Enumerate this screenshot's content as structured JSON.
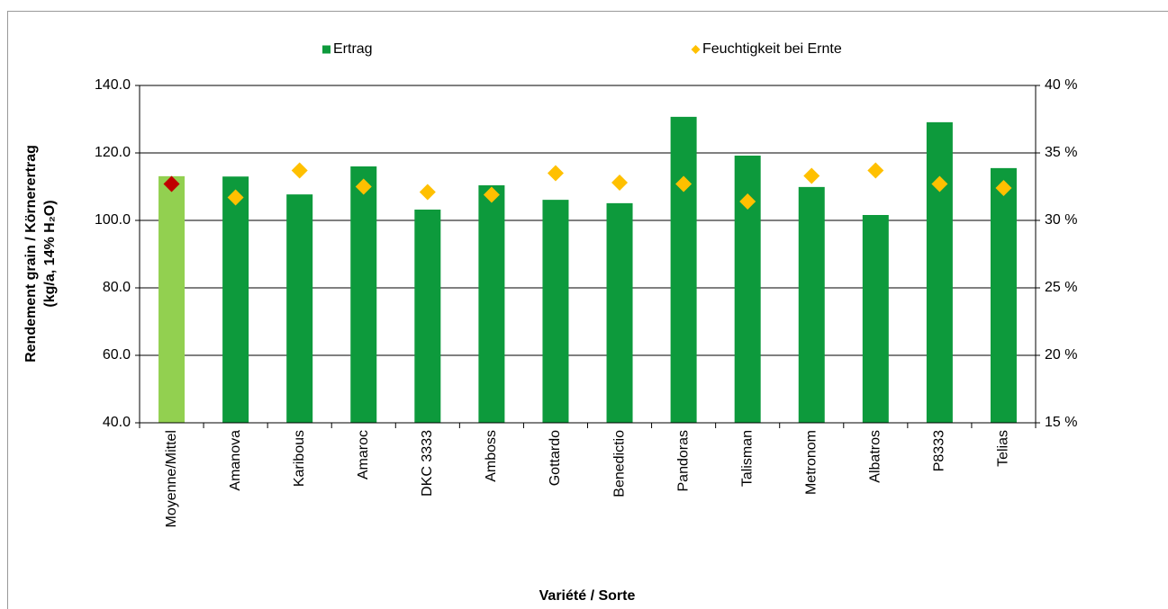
{
  "chart_data": {
    "type": "bar",
    "x_label": "Variété / Sorte",
    "y_label": [
      "Rendement grain / Körnerertrag",
      "(kg/a, 14% H₂O)"
    ],
    "categories": [
      "Moyenne/Mittel",
      "Amanova",
      "Karibous",
      "Amaroc",
      "DKC 3333",
      "Amboss",
      "Gottardo",
      "Benedictio",
      "Pandoras",
      "Talisman",
      "Metronom",
      "Albatros",
      "P8333",
      "Telias"
    ],
    "series": [
      {
        "name": "Ertrag",
        "type": "bar",
        "color": "#0d9a3c",
        "colors": [
          "#92d050",
          "#0d9a3c",
          "#0d9a3c",
          "#0d9a3c",
          "#0d9a3c",
          "#0d9a3c",
          "#0d9a3c",
          "#0d9a3c",
          "#0d9a3c",
          "#0d9a3c",
          "#0d9a3c",
          "#0d9a3c",
          "#0d9a3c",
          "#0d9a3c"
        ],
        "values": [
          113.1,
          113.0,
          107.7,
          116.0,
          103.2,
          110.4,
          106.1,
          105.1,
          130.7,
          119.2,
          109.9,
          101.6,
          129.1,
          115.5
        ]
      },
      {
        "name": "Feuchtigkeit bei Ernte",
        "type": "scatter",
        "axis": "y2",
        "color": "#ffc000",
        "colors": [
          "#c00000",
          "#ffc000",
          "#ffc000",
          "#ffc000",
          "#ffc000",
          "#ffc000",
          "#ffc000",
          "#ffc000",
          "#ffc000",
          "#ffc000",
          "#ffc000",
          "#ffc000",
          "#ffc000",
          "#ffc000"
        ],
        "values": [
          32.7,
          31.7,
          33.7,
          32.5,
          32.1,
          31.9,
          33.5,
          32.8,
          32.7,
          31.4,
          33.3,
          33.7,
          32.7,
          32.4
        ]
      }
    ],
    "ylim": [
      40,
      140
    ],
    "yticks": [
      {
        "value": 40,
        "label": "40.0"
      },
      {
        "value": 60,
        "label": "60.0"
      },
      {
        "value": 80,
        "label": "80.0"
      },
      {
        "value": 100,
        "label": "100.0"
      },
      {
        "value": 120,
        "label": "120.0"
      },
      {
        "value": 140,
        "label": "140.0"
      }
    ],
    "y2lim": [
      15,
      40
    ],
    "y2ticks": [
      {
        "value": 15,
        "label": "15 %"
      },
      {
        "value": 20,
        "label": "20 %"
      },
      {
        "value": 25,
        "label": "25 %"
      },
      {
        "value": 30,
        "label": "30 %"
      },
      {
        "value": 35,
        "label": "35 %"
      },
      {
        "value": 40,
        "label": "40 %"
      }
    ],
    "grid": true,
    "legend": "top"
  }
}
